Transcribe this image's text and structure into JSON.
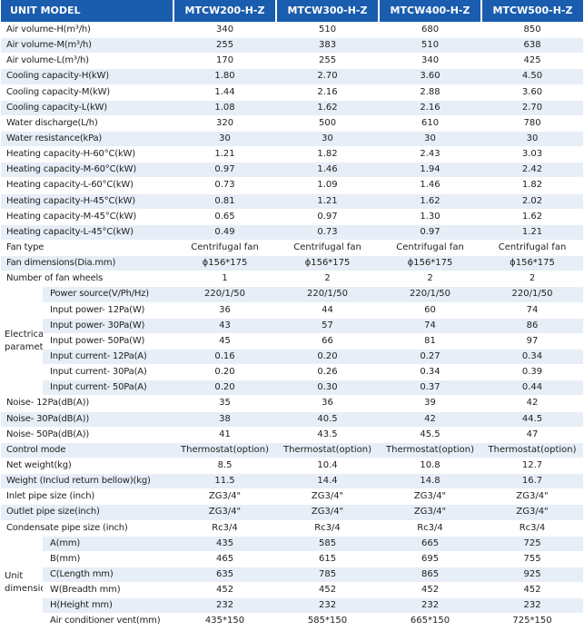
{
  "header": {
    "unit_model": "UNIT MODEL",
    "models": [
      "MTCW200-H-Z",
      "MTCW300-H-Z",
      "MTCW400-H-Z",
      "MTCW500-H-Z"
    ]
  },
  "rows_top": [
    {
      "label": "Air volume-H(m³/h)",
      "values": [
        "340",
        "510",
        "680",
        "850"
      ]
    },
    {
      "label": "Air volume-M(m³/h)",
      "values": [
        "255",
        "383",
        "510",
        "638"
      ]
    },
    {
      "label": "Air volume-L(m³/h)",
      "values": [
        "170",
        "255",
        "340",
        "425"
      ]
    },
    {
      "label": "Cooling capacity-H(kW)",
      "values": [
        "1.80",
        "2.70",
        "3.60",
        "4.50"
      ]
    },
    {
      "label": "Cooling capacity-M(kW)",
      "values": [
        "1.44",
        "2.16",
        "2.88",
        "3.60"
      ]
    },
    {
      "label": "Cooling capacity-L(kW)",
      "values": [
        "1.08",
        "1.62",
        "2.16",
        "2.70"
      ]
    },
    {
      "label": "Water discharge(L/h)",
      "values": [
        "320",
        "500",
        "610",
        "780"
      ]
    },
    {
      "label": "Water resistance(kPa)",
      "values": [
        "30",
        "30",
        "30",
        "30"
      ]
    },
    {
      "label": "Heating capacity-H-60°C(kW)",
      "values": [
        "1.21",
        "1.82",
        "2.43",
        "3.03"
      ]
    },
    {
      "label": "Heating capacity-M-60°C(kW)",
      "values": [
        "0.97",
        "1.46",
        "1.94",
        "2.42"
      ]
    },
    {
      "label": "Heating capacity-L-60°C(kW)",
      "values": [
        "0.73",
        "1.09",
        "1.46",
        "1.82"
      ]
    },
    {
      "label": "Heating capacity-H-45°C(kW)",
      "values": [
        "0.81",
        "1.21",
        "1.62",
        "2.02"
      ]
    },
    {
      "label": "Heating capacity-M-45°C(kW)",
      "values": [
        "0.65",
        "0.97",
        "1.30",
        "1.62"
      ]
    },
    {
      "label": "Heating capacity-L-45°C(kW)",
      "values": [
        "0.49",
        "0.73",
        "0.97",
        "1.21"
      ]
    },
    {
      "label": "Fan type",
      "values": [
        "Centrifugal fan",
        "Centrifugal fan",
        "Centrifugal fan",
        "Centrifugal fan"
      ]
    },
    {
      "label": "Fan dimensions(Dia.mm)",
      "values": [
        "ϕ156*175",
        "ϕ156*175",
        "ϕ156*175",
        "ϕ156*175"
      ]
    },
    {
      "label": "Number of fan wheels",
      "values": [
        "1",
        "2",
        "2",
        "2"
      ]
    }
  ],
  "electrical": {
    "group_label": "Electrical parameter",
    "rows": [
      {
        "label": "Power source(V/Ph/Hz)",
        "values": [
          "220/1/50",
          "220/1/50",
          "220/1/50",
          "220/1/50"
        ]
      },
      {
        "label": "Input power- 12Pa(W)",
        "values": [
          "36",
          "44",
          "60",
          "74"
        ]
      },
      {
        "label": "Input power- 30Pa(W)",
        "values": [
          "43",
          "57",
          "74",
          "86"
        ]
      },
      {
        "label": "Input power- 50Pa(W)",
        "values": [
          "45",
          "66",
          "81",
          "97"
        ]
      },
      {
        "label": "Input current- 12Pa(A)",
        "values": [
          "0.16",
          "0.20",
          "0.27",
          "0.34"
        ]
      },
      {
        "label": "Input current- 30Pa(A)",
        "values": [
          "0.20",
          "0.26",
          "0.34",
          "0.39"
        ]
      },
      {
        "label": "Input current- 50Pa(A)",
        "values": [
          "0.20",
          "0.30",
          "0.37",
          "0.44"
        ]
      }
    ]
  },
  "rows_mid": [
    {
      "label": "Noise- 12Pa(dB(A))",
      "values": [
        "35",
        "36",
        "39",
        "42"
      ]
    },
    {
      "label": "Noise- 30Pa(dB(A))",
      "values": [
        "38",
        "40.5",
        "42",
        "44.5"
      ]
    },
    {
      "label": "Noise- 50Pa(dB(A))",
      "values": [
        "41",
        "43.5",
        "45.5",
        "47"
      ]
    },
    {
      "label": "Control mode",
      "values": [
        "Thermostat(option)",
        "Thermostat(option)",
        "Thermostat(option)",
        "Thermostat(option)"
      ]
    },
    {
      "label": "Net weight(kg)",
      "values": [
        "8.5",
        "10.4",
        "10.8",
        "12.7"
      ]
    },
    {
      "label": "Weight (Includ return bellow)(kg)",
      "values": [
        "11.5",
        "14.4",
        "14.8",
        "16.7"
      ]
    },
    {
      "label": "Inlet pipe size (inch)",
      "values": [
        "ZG3/4\"",
        "ZG3/4\"",
        "ZG3/4\"",
        "ZG3/4\""
      ]
    },
    {
      "label": "Outlet pipe size(inch)",
      "values": [
        "ZG3/4\"",
        "ZG3/4\"",
        "ZG3/4\"",
        "ZG3/4\""
      ]
    },
    {
      "label": "Condensate pipe size (inch)",
      "values": [
        "Rc3/4",
        "Rc3/4",
        "Rc3/4",
        "Rc3/4"
      ]
    }
  ],
  "dimensions": {
    "group_label": "Unit dimensions",
    "rows": [
      {
        "label": "A(mm)",
        "values": [
          "435",
          "585",
          "665",
          "725"
        ]
      },
      {
        "label": "B(mm)",
        "values": [
          "465",
          "615",
          "695",
          "755"
        ]
      },
      {
        "label": "C(Length mm)",
        "values": [
          "635",
          "785",
          "865",
          "925"
        ]
      },
      {
        "label": "W(Breadth mm)",
        "values": [
          "452",
          "452",
          "452",
          "452"
        ]
      },
      {
        "label": "H(Height mm)",
        "values": [
          "232",
          "232",
          "232",
          "232"
        ]
      },
      {
        "label": "Air conditioner vent(mm)",
        "values": [
          "435*150",
          "585*150",
          "665*150",
          "725*150"
        ]
      }
    ]
  }
}
